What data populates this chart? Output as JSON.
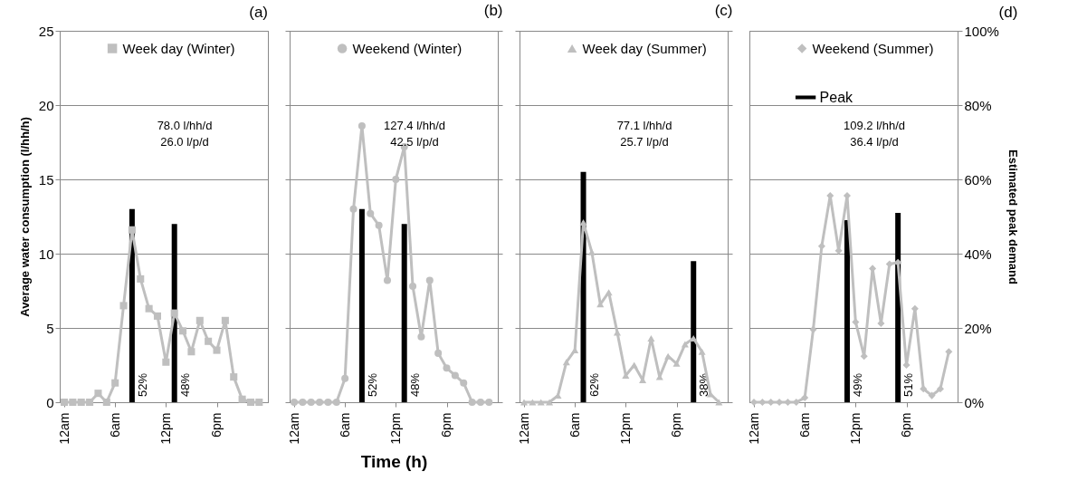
{
  "chart_data": [
    {
      "type": "line",
      "title": "(a)",
      "ylabel": "Average water consumption (l/hh/h)",
      "marker": "square",
      "grid": "y",
      "legend": "top",
      "tick_labels": [
        "x",
        "y"
      ],
      "categories": [
        "12am",
        null,
        null,
        null,
        null,
        null,
        "6am",
        null,
        null,
        null,
        null,
        null,
        "12pm",
        null,
        null,
        null,
        null,
        null,
        "6pm",
        null,
        null,
        null,
        null,
        null
      ],
      "ylim": [
        0,
        25
      ],
      "yticks": [
        0,
        5,
        10,
        15,
        20,
        25
      ],
      "y2lim": [
        0,
        100
      ],
      "annotations": [
        "78.0 l/hh/d",
        "26.0 l/p/d"
      ],
      "series": [
        {
          "name": "Week day (Winter)",
          "color": "#bfbfbf",
          "values": [
            0,
            0,
            0,
            0,
            0.6,
            0,
            1.3,
            6.5,
            11.6,
            8.3,
            6.3,
            5.8,
            2.7,
            6.0,
            4.8,
            3.4,
            5.5,
            4.1,
            3.5,
            5.5,
            1.7,
            0.2,
            0,
            0
          ]
        },
        {
          "type": "bar",
          "axis": "y2",
          "color": "#000000",
          "values": [
            null,
            null,
            null,
            null,
            null,
            null,
            null,
            null,
            52,
            null,
            null,
            null,
            null,
            48,
            null,
            null,
            null,
            null,
            null,
            null,
            null,
            null,
            null,
            null
          ],
          "value_labels": [
            null,
            null,
            null,
            null,
            null,
            null,
            null,
            null,
            "52%",
            null,
            null,
            null,
            null,
            "48%",
            null,
            null,
            null,
            null,
            null,
            null,
            null,
            null,
            null,
            null
          ]
        }
      ]
    },
    {
      "type": "line",
      "title": "(b)",
      "xlabel": "Time (h)",
      "marker": "circle",
      "grid": "y",
      "legend": "top",
      "tick_labels": "x",
      "categories": [
        "12am",
        null,
        null,
        null,
        null,
        null,
        "6am",
        null,
        null,
        null,
        null,
        null,
        "12pm",
        null,
        null,
        null,
        null,
        null,
        "6pm",
        null,
        null,
        null,
        null,
        null
      ],
      "ylim": [
        0,
        25
      ],
      "yticks": [
        0,
        5,
        10,
        15,
        20,
        25
      ],
      "y2lim": [
        0,
        100
      ],
      "y2ticks": [
        0,
        20,
        40,
        60,
        80,
        100
      ],
      "annotations": [
        "127.4 l/hh/d",
        "42.5 l/p/d"
      ],
      "series": [
        {
          "name": "Weekend (Winter)",
          "color": "#bfbfbf",
          "values": [
            0,
            0,
            0,
            0,
            0,
            0,
            1.6,
            13.0,
            18.6,
            12.7,
            11.9,
            8.2,
            15.0,
            17.2,
            7.8,
            4.4,
            8.2,
            3.3,
            2.3,
            1.8,
            1.3,
            0,
            0,
            0
          ]
        },
        {
          "type": "bar",
          "axis": "y2",
          "color": "#000000",
          "values": [
            null,
            null,
            null,
            null,
            null,
            null,
            null,
            null,
            52,
            null,
            null,
            null,
            null,
            48,
            null,
            null,
            null,
            null,
            null,
            null,
            null,
            null,
            null,
            null
          ],
          "value_labels": [
            null,
            null,
            null,
            null,
            null,
            null,
            null,
            null,
            "52%",
            null,
            null,
            null,
            null,
            "48%",
            null,
            null,
            null,
            null,
            null,
            null,
            null,
            null,
            null,
            null
          ]
        }
      ]
    },
    {
      "type": "line",
      "title": "(c)",
      "marker": "triangle",
      "grid": "y",
      "legend": "top",
      "tick_labels": "x",
      "categories": [
        "12am",
        null,
        null,
        null,
        null,
        null,
        "6am",
        null,
        null,
        null,
        null,
        null,
        "12pm",
        null,
        null,
        null,
        null,
        null,
        "6pm",
        null,
        null,
        null,
        null,
        null
      ],
      "ylim": [
        0,
        25
      ],
      "yticks": [
        0,
        5,
        10,
        15,
        20,
        25
      ],
      "y2lim": [
        0,
        100
      ],
      "y2ticks": [
        0,
        20,
        40,
        60,
        80,
        100
      ],
      "annotations": [
        "77.1 l/hh/d",
        "25.7 l/p/d"
      ],
      "series": [
        {
          "name": "Week day (Summer)",
          "color": "#bfbfbf",
          "values": [
            0,
            0,
            0,
            0,
            0.45,
            2.7,
            3.5,
            12.1,
            10.1,
            6.6,
            7.4,
            4.7,
            1.8,
            2.5,
            1.5,
            4.3,
            1.7,
            3.1,
            2.6,
            3.9,
            4.3,
            3.4,
            0.55,
            0
          ]
        },
        {
          "type": "bar",
          "axis": "y2",
          "color": "#000000",
          "values": [
            null,
            null,
            null,
            null,
            null,
            null,
            null,
            62,
            null,
            null,
            null,
            null,
            null,
            null,
            null,
            null,
            null,
            null,
            null,
            null,
            38,
            null,
            null,
            null
          ],
          "value_labels": [
            null,
            null,
            null,
            null,
            null,
            null,
            null,
            "62%",
            null,
            null,
            null,
            null,
            null,
            null,
            null,
            null,
            null,
            null,
            null,
            null,
            "38%",
            null,
            null,
            null
          ]
        }
      ]
    },
    {
      "type": "line",
      "title": "(d)",
      "y2label": "Estimated peak demand",
      "marker": "diamond",
      "grid": "y",
      "legend": "top",
      "tick_labels": [
        "x",
        "y2"
      ],
      "categories": [
        "12am",
        null,
        null,
        null,
        null,
        null,
        "6am",
        null,
        null,
        null,
        null,
        null,
        "12pm",
        null,
        null,
        null,
        null,
        null,
        "6pm",
        null,
        null,
        null,
        null,
        null
      ],
      "ylim": [
        0,
        25
      ],
      "y2lim": [
        0,
        100
      ],
      "y2ticks": [
        {
          "value": 0,
          "label": "0%"
        },
        {
          "value": 20,
          "label": "20%"
        },
        {
          "value": 40,
          "label": "40%"
        },
        {
          "value": 60,
          "label": "60%"
        },
        {
          "value": 80,
          "label": "80%"
        },
        {
          "value": 100,
          "label": "100%"
        }
      ],
      "annotations": [
        "109.2 l/hh/d",
        "36.4 l/p/d"
      ],
      "series": [
        {
          "name": "Weekend (Summer)",
          "color": "#bfbfbf",
          "values": [
            0,
            0,
            0,
            0,
            0,
            0,
            0.3,
            4.9,
            10.5,
            13.9,
            10.2,
            13.9,
            5.4,
            3.1,
            9.0,
            5.3,
            9.3,
            9.4,
            2.5,
            6.3,
            0.9,
            0.45,
            0.9,
            3.4
          ]
        },
        {
          "type": "bar",
          "name": "Peak",
          "axis": "y2",
          "color": "#000000",
          "values": [
            null,
            null,
            null,
            null,
            null,
            null,
            null,
            null,
            null,
            null,
            null,
            49,
            null,
            null,
            null,
            null,
            null,
            51,
            null,
            null,
            null,
            null,
            null,
            null
          ],
          "value_labels": [
            null,
            null,
            null,
            null,
            null,
            null,
            null,
            null,
            null,
            null,
            null,
            "49%",
            null,
            null,
            null,
            null,
            null,
            "51%",
            null,
            null,
            null,
            null,
            null,
            null
          ]
        }
      ]
    }
  ]
}
